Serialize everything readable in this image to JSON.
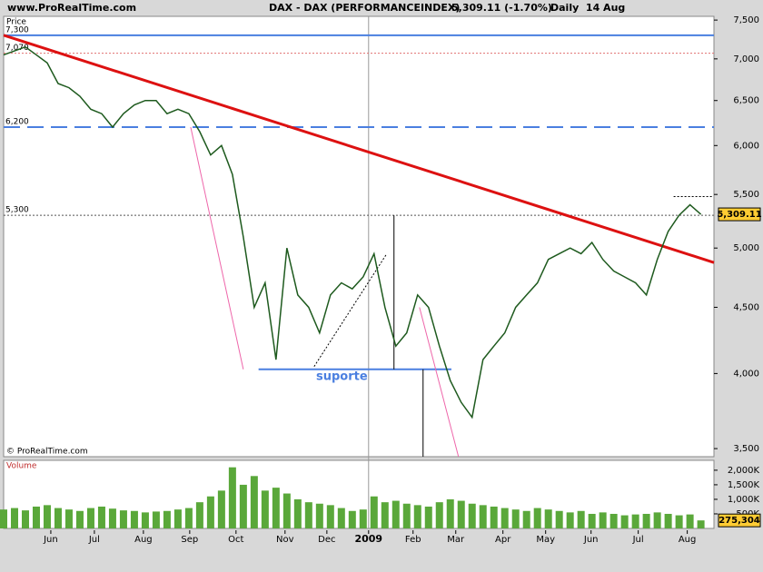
{
  "header": {
    "site": "www.ProRealTime.com",
    "title": "DAX - DAX (PERFORMANCEINDEX)",
    "quote": "5,309.11 (-1.70%)",
    "period": "Daily  14 Aug"
  },
  "chart_data": [
    {
      "type": "line",
      "y_label": "Price",
      "copyright": "© ProRealTime.com",
      "log_scale": true,
      "color": "#1e5a1e",
      "x": [
        0,
        1,
        2,
        3,
        4,
        5,
        6,
        7,
        8,
        9,
        10,
        11,
        12,
        13,
        14,
        15,
        16,
        17,
        18,
        19,
        20,
        21,
        22,
        23,
        24,
        25,
        26,
        27,
        28,
        29,
        30,
        31,
        32,
        33,
        34,
        35,
        36,
        37,
        38,
        39,
        40,
        41,
        42,
        43,
        44,
        45,
        46,
        47,
        48,
        49,
        50,
        51,
        52,
        53,
        54,
        55,
        56,
        57,
        58,
        59,
        60,
        61,
        62,
        63,
        64
      ],
      "values": [
        7050,
        7100,
        7150,
        7050,
        6950,
        6700,
        6650,
        6550,
        6400,
        6350,
        6200,
        6350,
        6450,
        6500,
        6500,
        6350,
        6400,
        6350,
        6150,
        5900,
        6000,
        5700,
        5100,
        4500,
        4700,
        4100,
        5000,
        4600,
        4500,
        4300,
        4600,
        4700,
        4650,
        4750,
        4950,
        4500,
        4200,
        4300,
        4600,
        4500,
        4200,
        3950,
        3800,
        3700,
        4100,
        4200,
        4300,
        4500,
        4600,
        4700,
        4900,
        4950,
        5000,
        4950,
        5050,
        4900,
        4800,
        4750,
        4700,
        4600,
        4900,
        5150,
        5300,
        5400,
        5309.11
      ],
      "last_price": {
        "value": 5309.11,
        "label": "5,309.11"
      },
      "xlim": [
        0,
        65.2
      ],
      "xticks": [
        {
          "value": 4.33,
          "label": "Jun"
        },
        {
          "value": 8.33,
          "label": "Jul"
        },
        {
          "value": 12.83,
          "label": "Aug"
        },
        {
          "value": 17.08,
          "label": "Sep"
        },
        {
          "value": 21.33,
          "label": "Oct"
        },
        {
          "value": 25.83,
          "label": "Nov"
        },
        {
          "value": 29.67,
          "label": "Dec"
        },
        {
          "value": 33.5,
          "label": "2009"
        },
        {
          "value": 37.58,
          "label": "Feb"
        },
        {
          "value": 41.5,
          "label": "Mar"
        },
        {
          "value": 45.83,
          "label": "Apr"
        },
        {
          "value": 49.75,
          "label": "May"
        },
        {
          "value": 53.92,
          "label": "Jun"
        },
        {
          "value": 58.25,
          "label": "Jul"
        },
        {
          "value": 62.75,
          "label": "Aug"
        }
      ],
      "ylim": [
        3450,
        7550
      ],
      "yticks": [
        {
          "value": 3500,
          "label": "3,500"
        },
        {
          "value": 4000,
          "label": "4,000"
        },
        {
          "value": 4500,
          "label": "4,500"
        },
        {
          "value": 5000,
          "label": "5,000"
        },
        {
          "value": 5500,
          "label": "5,500"
        },
        {
          "value": 6000,
          "label": "6,000"
        },
        {
          "value": 6500,
          "label": "6,500"
        },
        {
          "value": 7000,
          "label": "7,000"
        },
        {
          "value": 7500,
          "label": "7,500"
        }
      ],
      "levels": [
        {
          "value": 7300,
          "label": "7,300",
          "color": "#4a7fe0",
          "style": "solid"
        },
        {
          "value": 7070,
          "label": "7,070",
          "color": "#e07070",
          "style": "dotted"
        },
        {
          "value": 6200,
          "label": "6,200",
          "color": "#4a7fe0",
          "style": "dashed"
        },
        {
          "value": 5300,
          "label": "5,300",
          "color": "#555555",
          "style": "dotted"
        }
      ],
      "lines": [
        {
          "from": [
            0,
            7300
          ],
          "to": [
            65.2,
            4873
          ],
          "color": "#dd1111",
          "style": "thick"
        },
        {
          "from": [
            23.4,
            4030
          ],
          "to": [
            41.1,
            4030
          ],
          "color": "#4a7fe0",
          "style": "solid"
        },
        {
          "from": [
            17.17,
            6200
          ],
          "to": [
            22,
            4030
          ],
          "color": "#ee66aa",
          "style": "thin"
        },
        {
          "from": [
            38.17,
            4500
          ],
          "to": [
            41.75,
            3450
          ],
          "color": "#ee66aa",
          "style": "thin"
        },
        {
          "from": [
            28.5,
            4050
          ],
          "to": [
            35.17,
            4950
          ],
          "color": "#000000",
          "style": "dotted"
        },
        {
          "from": [
            35.83,
            5300
          ],
          "to": [
            35.83,
            4030
          ],
          "color": "#000000",
          "style": "thin"
        },
        {
          "from": [
            38.5,
            4030
          ],
          "to": [
            38.5,
            3450
          ],
          "color": "#000000",
          "style": "thin"
        },
        {
          "from": [
            61.5,
            5480
          ],
          "to": [
            65,
            5480
          ],
          "color": "#000000",
          "style": "dotted"
        }
      ],
      "support_label": "suporte"
    },
    {
      "type": "bar",
      "y_label": "Volume",
      "color": "#5aa83a",
      "x": [
        0,
        1,
        2,
        3,
        4,
        5,
        6,
        7,
        8,
        9,
        10,
        11,
        12,
        13,
        14,
        15,
        16,
        17,
        18,
        19,
        20,
        21,
        22,
        23,
        24,
        25,
        26,
        27,
        28,
        29,
        30,
        31,
        32,
        33,
        34,
        35,
        36,
        37,
        38,
        39,
        40,
        41,
        42,
        43,
        44,
        45,
        46,
        47,
        48,
        49,
        50,
        51,
        52,
        53,
        54,
        55,
        56,
        57,
        58,
        59,
        60,
        61,
        62,
        63,
        64
      ],
      "values": [
        650,
        700,
        620,
        750,
        800,
        700,
        650,
        600,
        700,
        750,
        680,
        620,
        600,
        550,
        580,
        600,
        650,
        700,
        900,
        1100,
        1300,
        2100,
        1500,
        1800,
        1300,
        1400,
        1200,
        1000,
        900,
        850,
        800,
        700,
        600,
        650,
        1100,
        900,
        950,
        850,
        800,
        750,
        900,
        1000,
        950,
        850,
        800,
        750,
        700,
        650,
        600,
        700,
        650,
        600,
        550,
        600,
        500,
        550,
        500,
        450,
        480,
        500,
        550,
        500,
        450,
        480,
        275.304
      ],
      "last_label": "275,304",
      "xlim": [
        0,
        65.2
      ],
      "ylim": [
        0,
        2340
      ],
      "yticks": [
        {
          "value": 500,
          "label": "500K"
        },
        {
          "value": 1000,
          "label": "1,000K"
        },
        {
          "value": 1500,
          "label": "1,500K"
        },
        {
          "value": 2000,
          "label": "2,000K"
        }
      ]
    }
  ]
}
